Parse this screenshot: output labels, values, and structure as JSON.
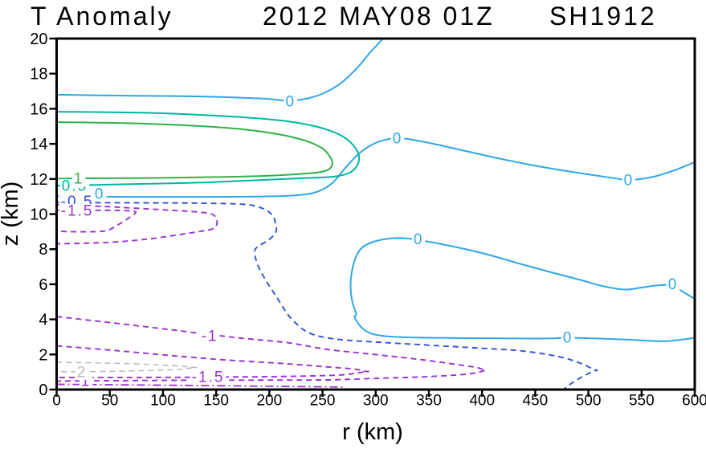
{
  "title": {
    "left": "T Anomaly",
    "date": "2012 MAY08 01Z",
    "storm_id": "SH1912"
  },
  "chart_data": {
    "type": "contour",
    "title": "T Anomaly   2012 MAY08 01Z   SH1912",
    "xlabel": "r (km)",
    "ylabel": "z (km)",
    "x_axis": {
      "min": 0,
      "max": 600,
      "tick_step": 50,
      "ticks": [
        0,
        50,
        100,
        150,
        200,
        250,
        300,
        350,
        400,
        450,
        500,
        550,
        600
      ]
    },
    "y_axis": {
      "min": 0,
      "max": 20,
      "tick_step": 2,
      "ticks": [
        0,
        2,
        4,
        6,
        8,
        10,
        12,
        14,
        16,
        18,
        20
      ]
    },
    "grid": false,
    "legend": false,
    "contours": [
      {
        "level": 0,
        "color": "#2ea8e6",
        "style": "solid",
        "width": 2,
        "points": [
          [
            0,
            16.8
          ],
          [
            60,
            16.75
          ],
          [
            135.6,
            16.7
          ],
          [
            196,
            16.57
          ],
          [
            218.7,
            16.45
          ],
          [
            237.5,
            16.61
          ],
          [
            252.6,
            16.93
          ],
          [
            267.8,
            17.48
          ],
          [
            282.9,
            18.35
          ],
          [
            295,
            19.22
          ],
          [
            307,
            20.0
          ]
        ],
        "labels": [
          {
            "r": 220,
            "z": 16.43,
            "text": "0"
          }
        ]
      },
      {
        "level": 0,
        "color": "#2ea8e6",
        "style": "solid",
        "width": 2,
        "points": [
          [
            0,
            11.01
          ],
          [
            67.6,
            10.98
          ],
          [
            143,
            10.98
          ],
          [
            203.5,
            11.01
          ],
          [
            233.8,
            11.12
          ],
          [
            248.9,
            11.37
          ],
          [
            260,
            11.81
          ],
          [
            271.5,
            12.63
          ],
          [
            282,
            13.32
          ],
          [
            292.7,
            13.82
          ],
          [
            304.8,
            14.16
          ],
          [
            318.4,
            14.32
          ],
          [
            332,
            14.26
          ],
          [
            354.6,
            14.0
          ],
          [
            384.8,
            13.59
          ],
          [
            418.8,
            13.13
          ],
          [
            456.6,
            12.68
          ],
          [
            494.3,
            12.31
          ],
          [
            520.8,
            12.08
          ],
          [
            538.1,
            11.94
          ],
          [
            560,
            12.11
          ],
          [
            579.7,
            12.47
          ],
          [
            594,
            12.81
          ],
          [
            600,
            12.95
          ]
        ],
        "labels": [
          {
            "r": 320.6,
            "z": 14.32,
            "text": "0"
          },
          {
            "r": 538,
            "z": 11.95,
            "text": "0"
          },
          {
            "r": 40.5,
            "z": 11.17,
            "text": "0"
          }
        ]
      },
      {
        "level": 0.5,
        "color": "#00b5a3",
        "style": "solid",
        "width": 2,
        "points": [
          [
            0,
            15.83
          ],
          [
            82.7,
            15.77
          ],
          [
            158.2,
            15.58
          ],
          [
            211.1,
            15.33
          ],
          [
            245.1,
            14.97
          ],
          [
            267,
            14.49
          ],
          [
            279.1,
            13.91
          ],
          [
            284.4,
            13.27
          ],
          [
            281.7,
            12.68
          ],
          [
            273.8,
            12.31
          ],
          [
            260.2,
            12.13
          ],
          [
            237.5,
            12.06
          ],
          [
            196,
            11.95
          ],
          [
            143.1,
            11.81
          ],
          [
            82.7,
            11.72
          ],
          [
            37.4,
            11.66
          ],
          [
            0,
            11.62
          ]
        ],
        "labels": [
          {
            "r": 17,
            "z": 11.62,
            "text": "0.5"
          }
        ]
      },
      {
        "level": 1,
        "color": "#2eb24a",
        "style": "solid",
        "width": 2,
        "points": [
          [
            0,
            15.24
          ],
          [
            82.7,
            15.15
          ],
          [
            158.2,
            14.92
          ],
          [
            203.5,
            14.6
          ],
          [
            232.3,
            14.21
          ],
          [
            248.9,
            13.78
          ],
          [
            256.4,
            13.32
          ],
          [
            259.4,
            12.88
          ],
          [
            255.7,
            12.54
          ],
          [
            246.6,
            12.38
          ],
          [
            226.2,
            12.27
          ],
          [
            193.7,
            12.17
          ],
          [
            150.7,
            12.11
          ],
          [
            97.8,
            12.06
          ],
          [
            37.4,
            12.04
          ],
          [
            0,
            12.02
          ]
        ],
        "labels": [
          {
            "r": 20.8,
            "z": 12.03,
            "text": "1"
          }
        ]
      },
      {
        "level": -0.5,
        "color": "#2e52d6",
        "style": "dashed",
        "width": 1.9,
        "points": [
          [
            0,
            10.66
          ],
          [
            67.6,
            10.64
          ],
          [
            135.6,
            10.62
          ],
          [
            177.1,
            10.55
          ],
          [
            194.5,
            10.3
          ],
          [
            202.8,
            9.93
          ],
          [
            205.8,
            9.47
          ],
          [
            206.2,
            8.97
          ],
          [
            199,
            8.51
          ],
          [
            189.2,
            8.15
          ],
          [
            186.2,
            7.83
          ],
          [
            189.2,
            7.09
          ],
          [
            196.7,
            6.22
          ],
          [
            206.5,
            5.31
          ],
          [
            217.1,
            4.3
          ],
          [
            226.2,
            3.71
          ],
          [
            234.5,
            3.32
          ],
          [
            246.6,
            3.04
          ],
          [
            267.8,
            2.84
          ],
          [
            301.7,
            2.7
          ],
          [
            347,
            2.54
          ],
          [
            392.3,
            2.38
          ],
          [
            437.6,
            2.2
          ],
          [
            471.6,
            1.88
          ],
          [
            492.1,
            1.51
          ],
          [
            506.4,
            1.1
          ],
          [
            506.4,
            1.1
          ],
          [
            494.3,
            0.73
          ],
          [
            484.5,
            0.37
          ],
          [
            477.7,
            0.07
          ]
        ],
        "labels": [
          {
            "r": 19.3,
            "z": 10.73,
            "text": "-0.5"
          }
        ]
      },
      {
        "level": -1,
        "color": "#9a32d2",
        "style": "dashed",
        "width": 1.9,
        "points": [
          [
            0,
            10.53
          ],
          [
            44.9,
            10.43
          ],
          [
            97.8,
            10.25
          ],
          [
            128,
            10.14
          ],
          [
            144.6,
            10.02
          ],
          [
            149.9,
            9.79
          ],
          [
            150.7,
            9.47
          ],
          [
            147.7,
            9.18
          ],
          [
            135.6,
            9.02
          ],
          [
            115.2,
            8.83
          ],
          [
            95.5,
            8.65
          ],
          [
            75.2,
            8.51
          ],
          [
            52.5,
            8.4
          ],
          [
            22.3,
            8.33
          ],
          [
            0,
            8.31
          ]
        ],
        "labels": []
      },
      {
        "level": -1.5,
        "color": "#9a32d2",
        "style": "dashed",
        "width": 1.9,
        "points": [
          [
            0,
            10.21
          ],
          [
            52.5,
            10.21
          ],
          [
            73.6,
            10.14
          ],
          [
            69.1,
            9.84
          ],
          [
            60,
            9.47
          ],
          [
            51,
            9.15
          ],
          [
            43.4,
            9.02
          ],
          [
            22.3,
            8.99
          ],
          [
            0,
            9.02
          ]
        ],
        "labels": [
          {
            "r": 19.3,
            "z": 10.21,
            "text": "-1.5"
          }
        ]
      },
      {
        "level": -1,
        "color": "#9a32d2",
        "style": "dashed",
        "width": 1.9,
        "points": [
          [
            0,
            4.16
          ],
          [
            52.5,
            3.8
          ],
          [
            97.8,
            3.48
          ],
          [
            135.6,
            3.2
          ],
          [
            173.3,
            2.93
          ],
          [
            218.7,
            2.66
          ],
          [
            254.2,
            2.29
          ],
          [
            304,
            1.97
          ],
          [
            344.8,
            1.69
          ],
          [
            377.3,
            1.42
          ],
          [
            396.2,
            1.24
          ],
          [
            402.2,
            1.08
          ],
          [
            402.2,
            1.08
          ],
          [
            390.9,
            0.92
          ],
          [
            373.5,
            0.82
          ],
          [
            339.5,
            0.71
          ],
          [
            301.7,
            0.64
          ],
          [
            254.2,
            0.55
          ],
          [
            203.5,
            0.54
          ],
          [
            135.6,
            0.53
          ],
          [
            60,
            0.51
          ],
          [
            31.3,
            0.5
          ],
          [
            0,
            0.48
          ]
        ],
        "labels": [
          {
            "r": 143.9,
            "z": 3.07,
            "text": "-1"
          },
          {
            "r": 27.6,
            "z": 0.5,
            "text": "1"
          }
        ]
      },
      {
        "level": -1.5,
        "color": "#9a32d2",
        "style": "dashed",
        "width": 1.9,
        "points": [
          [
            0,
            2.49
          ],
          [
            52.5,
            2.24
          ],
          [
            105.4,
            1.95
          ],
          [
            158.2,
            1.69
          ],
          [
            211.1,
            1.49
          ],
          [
            252.6,
            1.3
          ],
          [
            279.1,
            1.17
          ],
          [
            291.2,
            1.03
          ],
          [
            291.2,
            1.03
          ],
          [
            271.5,
            0.85
          ],
          [
            241.3,
            0.78
          ],
          [
            196,
            0.73
          ],
          [
            158.2,
            0.72
          ],
          [
            128,
            0.7
          ],
          [
            67.6,
            0.69
          ],
          [
            0,
            0.69
          ]
        ],
        "labels": [
          {
            "r": 142.4,
            "z": 0.73,
            "text": "-1.5"
          }
        ]
      },
      {
        "level": -2,
        "color": "#b8b8b8",
        "style": "dashed",
        "width": 1.5,
        "points": [
          [
            0,
            1.56
          ],
          [
            44.9,
            1.51
          ],
          [
            82.7,
            1.44
          ],
          [
            112.9,
            1.35
          ],
          [
            129.5,
            1.26
          ],
          [
            129.5,
            1.26
          ],
          [
            112.9,
            1.14
          ],
          [
            82.7,
            1.08
          ],
          [
            44.9,
            1.03
          ],
          [
            0,
            1.01
          ]
        ],
        "labels": [
          {
            "r": 23.8,
            "z": 1.01,
            "text": "2"
          }
        ]
      },
      {
        "level": -1,
        "color": "#9a32d2",
        "style": "dashdot",
        "width": 1.8,
        "points": [
          [
            0,
            0.3
          ],
          [
            60,
            0.27
          ],
          [
            135.6,
            0.23
          ],
          [
            211.1,
            0.18
          ],
          [
            271.5,
            0.14
          ]
        ],
        "labels": []
      },
      {
        "level": 0,
        "color": "#2ea8e6",
        "style": "solid",
        "width": 2,
        "points": [
          [
            600,
            5.17
          ],
          [
            587.2,
            5.63
          ],
          [
            579.6,
            5.95
          ],
          [
            564.5,
            5.93
          ],
          [
            549.4,
            5.81
          ],
          [
            534.4,
            5.7
          ],
          [
            514.7,
            5.88
          ],
          [
            492.1,
            6.25
          ],
          [
            466.4,
            6.66
          ],
          [
            436.2,
            7.16
          ],
          [
            399.9,
            7.78
          ],
          [
            365.9,
            8.24
          ],
          [
            341.8,
            8.51
          ],
          [
            322.9,
            8.63
          ],
          [
            303.2,
            8.51
          ],
          [
            288.9,
            8.17
          ],
          [
            282.1,
            7.64
          ],
          [
            277.9,
            6.82
          ],
          [
            276.4,
            5.86
          ],
          [
            278.3,
            4.94
          ],
          [
            281.7,
            4.32
          ],
          [
            280.2,
            4.14
          ],
          [
            284.7,
            3.68
          ],
          [
            291.2,
            3.32
          ],
          [
            301,
            3.11
          ],
          [
            318.4,
            3.0
          ],
          [
            348.6,
            2.95
          ],
          [
            386.3,
            2.93
          ],
          [
            431.6,
            2.91
          ],
          [
            461.9,
            2.91
          ],
          [
            482.2,
            2.95
          ],
          [
            507.2,
            2.91
          ],
          [
            537.4,
            2.84
          ],
          [
            570.5,
            2.75
          ],
          [
            587.2,
            2.84
          ],
          [
            600,
            2.95
          ]
        ],
        "labels": [
          {
            "r": 579.6,
            "z": 6.02,
            "text": "0"
          },
          {
            "r": 340.3,
            "z": 8.58,
            "text": "0"
          },
          {
            "r": 480.7,
            "z": 2.97,
            "text": "0"
          }
        ]
      }
    ]
  }
}
